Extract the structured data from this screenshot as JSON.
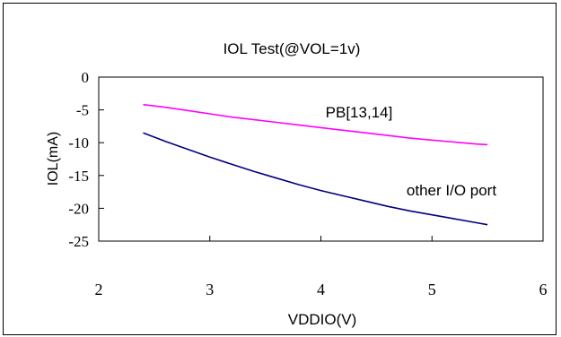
{
  "chart_data": {
    "type": "line",
    "title": "IOL Test(@VOL=1v)",
    "xlabel": "VDDIO(V)",
    "ylabel": "IOL(mA)",
    "xlim": [
      2,
      6
    ],
    "ylim": [
      -25,
      0
    ],
    "xticks": [
      "2",
      "3",
      "4",
      "5",
      "6"
    ],
    "yticks": [
      "0",
      "-5",
      "-10",
      "-15",
      "-20",
      "-25"
    ],
    "x_values": [
      2.4,
      2.6,
      2.8,
      3.0,
      3.2,
      3.4,
      3.6,
      3.8,
      4.0,
      4.2,
      4.4,
      4.6,
      4.8,
      5.0,
      5.2,
      5.4,
      5.5
    ],
    "series": [
      {
        "name": "PB[13,14]",
        "color": "#ff00ff",
        "values": [
          -4.2,
          -4.6,
          -5.1,
          -5.6,
          -6.1,
          -6.5,
          -6.9,
          -7.3,
          -7.7,
          -8.1,
          -8.5,
          -8.9,
          -9.3,
          -9.6,
          -9.9,
          -10.2,
          -10.3
        ]
      },
      {
        "name": "other I/O port",
        "color": "#000080",
        "values": [
          -8.5,
          -9.8,
          -11.0,
          -12.2,
          -13.3,
          -14.4,
          -15.4,
          -16.4,
          -17.3,
          -18.1,
          -18.9,
          -19.7,
          -20.4,
          -21.0,
          -21.6,
          -22.2,
          -22.5
        ]
      }
    ],
    "grid": false,
    "legend": "none"
  }
}
